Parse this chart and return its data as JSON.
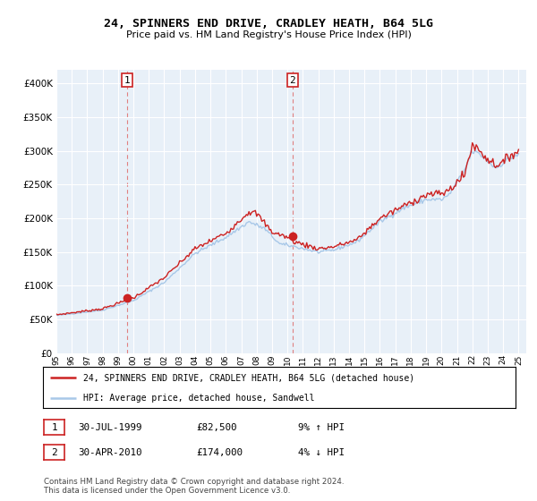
{
  "title": "24, SPINNERS END DRIVE, CRADLEY HEATH, B64 5LG",
  "subtitle": "Price paid vs. HM Land Registry's House Price Index (HPI)",
  "legend_line1": "24, SPINNERS END DRIVE, CRADLEY HEATH, B64 5LG (detached house)",
  "legend_line2": "HPI: Average price, detached house, Sandwell",
  "annotation1_date": "30-JUL-1999",
  "annotation1_price": "£82,500",
  "annotation1_hpi": "9% ↑ HPI",
  "annotation2_date": "30-APR-2010",
  "annotation2_price": "£174,000",
  "annotation2_hpi": "4% ↓ HPI",
  "footer": "Contains HM Land Registry data © Crown copyright and database right 2024.\nThis data is licensed under the Open Government Licence v3.0.",
  "hpi_color": "#a8c8e8",
  "price_color": "#cc2222",
  "dashed_color": "#e08080",
  "bg_color": "#e8f0f8",
  "ylim": [
    0,
    420000
  ],
  "yticks": [
    0,
    50000,
    100000,
    150000,
    200000,
    250000,
    300000,
    350000,
    400000
  ],
  "sale1_x": 1999.58,
  "sale1_y": 82500,
  "sale2_x": 2010.33,
  "sale2_y": 174000,
  "xlim_start": 1995.0,
  "xlim_end": 2025.5
}
